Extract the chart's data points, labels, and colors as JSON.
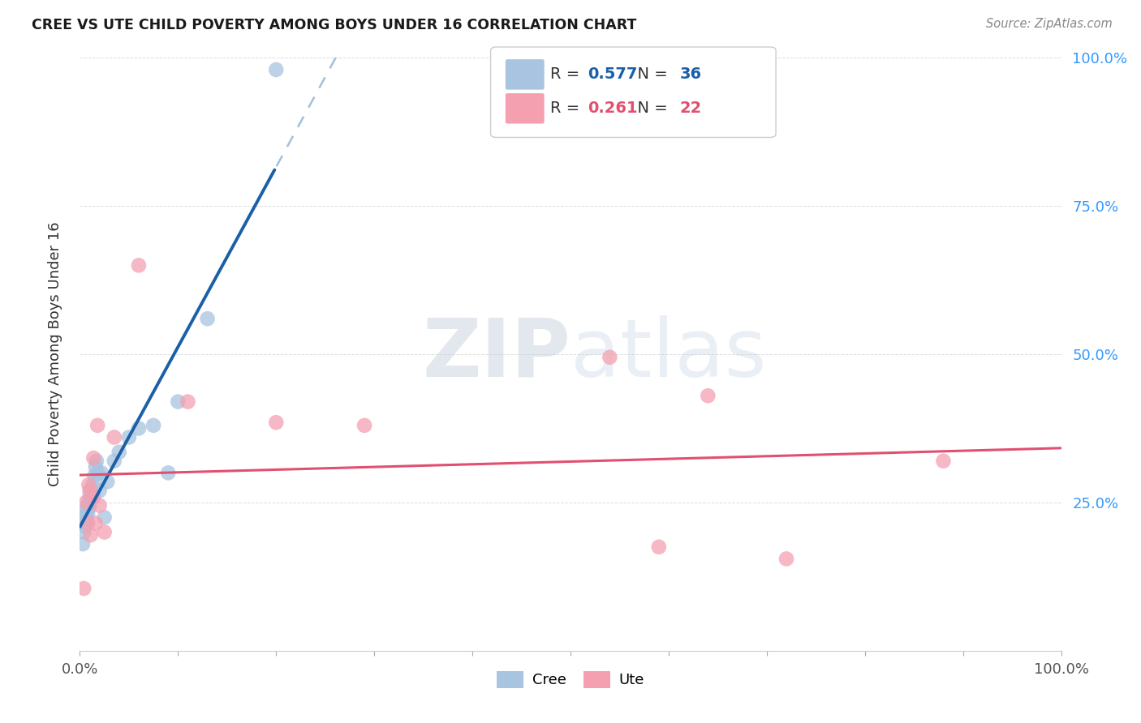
{
  "title": "CREE VS UTE CHILD POVERTY AMONG BOYS UNDER 16 CORRELATION CHART",
  "source": "Source: ZipAtlas.com",
  "ylabel": "Child Poverty Among Boys Under 16",
  "xlim": [
    0.0,
    1.0
  ],
  "ylim": [
    0.0,
    1.0
  ],
  "cree_color": "#a8c4e0",
  "ute_color": "#f4a0b0",
  "cree_line_color": "#1a5fa8",
  "ute_line_color": "#e05070",
  "cree_R": "0.577",
  "cree_N": "36",
  "ute_R": "0.261",
  "ute_N": "22",
  "right_tick_color": "#3399ff",
  "watermark_color": "#c8d8ec",
  "cree_x": [
    0.003,
    0.004,
    0.005,
    0.005,
    0.006,
    0.006,
    0.007,
    0.007,
    0.008,
    0.008,
    0.009,
    0.009,
    0.01,
    0.01,
    0.011,
    0.011,
    0.012,
    0.013,
    0.014,
    0.015,
    0.016,
    0.017,
    0.018,
    0.02,
    0.022,
    0.025,
    0.028,
    0.035,
    0.04,
    0.05,
    0.06,
    0.075,
    0.09,
    0.1,
    0.13,
    0.2
  ],
  "cree_y": [
    0.18,
    0.2,
    0.21,
    0.225,
    0.23,
    0.215,
    0.24,
    0.22,
    0.245,
    0.23,
    0.25,
    0.24,
    0.26,
    0.245,
    0.27,
    0.255,
    0.265,
    0.28,
    0.26,
    0.295,
    0.31,
    0.32,
    0.3,
    0.27,
    0.3,
    0.225,
    0.285,
    0.32,
    0.335,
    0.36,
    0.375,
    0.38,
    0.3,
    0.42,
    0.56,
    0.98
  ],
  "ute_x": [
    0.004,
    0.006,
    0.008,
    0.009,
    0.01,
    0.011,
    0.013,
    0.014,
    0.016,
    0.018,
    0.02,
    0.025,
    0.035,
    0.06,
    0.11,
    0.2,
    0.29,
    0.54,
    0.59,
    0.64,
    0.72,
    0.88
  ],
  "ute_y": [
    0.105,
    0.25,
    0.215,
    0.28,
    0.27,
    0.195,
    0.26,
    0.325,
    0.215,
    0.38,
    0.245,
    0.2,
    0.36,
    0.65,
    0.42,
    0.385,
    0.38,
    0.495,
    0.175,
    0.43,
    0.155,
    0.32
  ]
}
